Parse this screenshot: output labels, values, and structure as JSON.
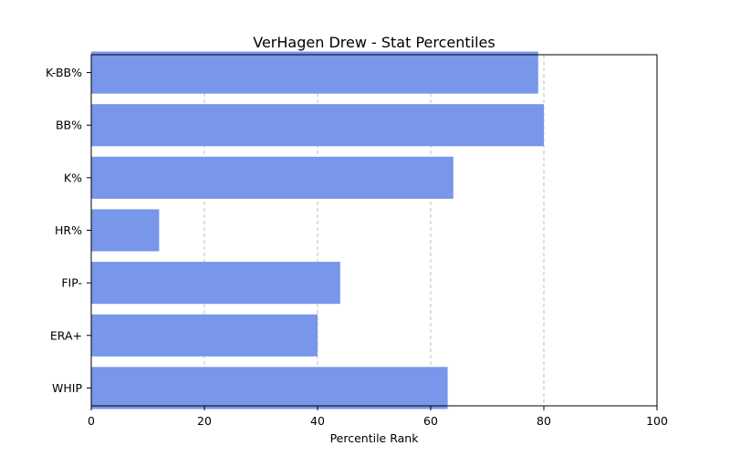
{
  "chart_data": {
    "type": "bar",
    "orientation": "horizontal",
    "title": "VerHagen Drew - Stat Percentiles",
    "xlabel": "Percentile Rank",
    "ylabel": "",
    "xlim": [
      0,
      100
    ],
    "xticks": [
      "0",
      "20",
      "40",
      "60",
      "80",
      "100"
    ],
    "grid": "x-dashed",
    "bar_color": "#7896ea",
    "categories": [
      "K-BB%",
      "BB%",
      "K%",
      "HR%",
      "FIP-",
      "ERA+",
      "WHIP"
    ],
    "values": [
      79,
      80,
      64,
      12,
      44,
      40,
      63
    ]
  }
}
